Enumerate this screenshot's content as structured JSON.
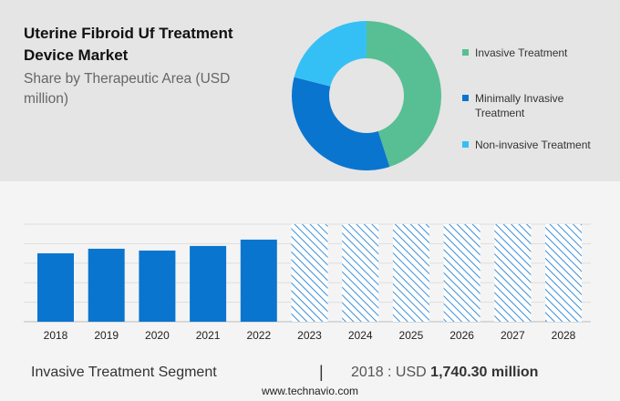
{
  "header": {
    "title": "Uterine Fibroid Uf Treatment Device Market",
    "subtitle": "Share by Therapeutic Area (USD million)"
  },
  "chart_data": [
    {
      "type": "pie",
      "donut": true,
      "segments": [
        {
          "name": "Invasive Treatment",
          "share": 45,
          "color": "#57bf93"
        },
        {
          "name": "Minimally Invasive Treatment",
          "share": 34,
          "color": "#0a75cf"
        },
        {
          "name": "Non-invasive Treatment",
          "share": 21,
          "color": "#35c0f5"
        }
      ],
      "legend": "right"
    },
    {
      "type": "bar",
      "categories": [
        "2018",
        "2019",
        "2020",
        "2021",
        "2022",
        "2023",
        "2024",
        "2025",
        "2026",
        "2027",
        "2028"
      ],
      "values": [
        1740.3,
        1856,
        1810,
        1926,
        2088,
        null,
        null,
        null,
        null,
        null,
        null
      ],
      "forecast": [
        false,
        false,
        false,
        false,
        false,
        true,
        true,
        true,
        true,
        true,
        true
      ],
      "ylim": [
        0,
        2480
      ],
      "grid": true,
      "color": "#0a75cf",
      "forecast_style": "hatched"
    }
  ],
  "footer": {
    "segment": "Invasive Treatment Segment",
    "separator": "|",
    "year_label": "2018 : USD",
    "value": "1,740.30 million",
    "site": "www.technavio.com"
  }
}
